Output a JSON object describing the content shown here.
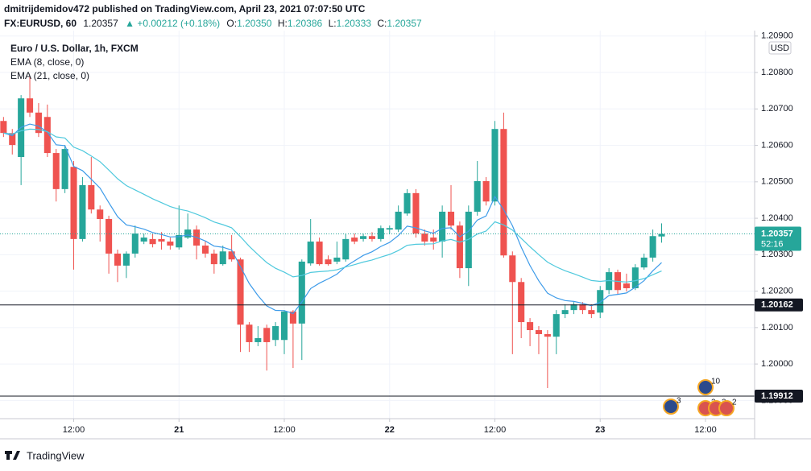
{
  "header": {
    "publisher": "dmitrijdemidov472 published on TradingView.com, April 23, 2021 07:07:50 UTC",
    "symbol": "FX:EURUSD, 60",
    "last": "1.20357",
    "change": "▲ +0.00212 (+0.18%)",
    "o_label": "O:",
    "o": "1.20350",
    "h_label": "H:",
    "h": "1.20386",
    "l_label": "L:",
    "l": "1.20333",
    "c_label": "C:",
    "c": "1.20357"
  },
  "footer": {
    "brand": "TradingView"
  },
  "chart_data": {
    "type": "candlestick",
    "title": "Euro / U.S. Dollar, 1h, FXCM",
    "currency": "USD",
    "up_color": "#26a69a",
    "down_color": "#ef5350",
    "grid": true,
    "open": [
      1.20667,
      1.20634,
      1.20568,
      1.20729,
      1.2069,
      1.20678,
      1.20579,
      1.2048,
      1.20541,
      1.20343,
      1.20491,
      1.20424,
      1.20398,
      1.20303,
      1.2027,
      1.20303,
      1.20336,
      1.20343,
      1.20343,
      1.20336,
      1.2032,
      1.20347,
      1.20369,
      1.20325,
      1.20303,
      1.20274,
      1.20309,
      1.20287,
      1.20108,
      1.2006,
      1.20099,
      1.20066,
      1.20066,
      1.20144,
      1.20111,
      1.20276,
      1.20336,
      1.20287,
      1.20281,
      1.20287,
      1.20347,
      1.20343,
      1.20351,
      1.20343,
      1.20369,
      1.20369,
      1.20413,
      1.20469,
      1.20358,
      1.20347,
      1.20336,
      1.20418,
      1.2038,
      1.20263,
      1.20418,
      1.20502,
      1.20446,
      1.20645,
      1.20298,
      1.20225,
      1.20115,
      1.20093,
      1.20082,
      1.20075,
      1.20137,
      1.20148,
      1.20164,
      1.20148,
      1.20141,
      1.20203,
      1.20252,
      1.20221,
      1.20208,
      1.20265,
      1.20292,
      1.2035
    ],
    "high": [
      1.20678,
      1.20645,
      1.20738,
      1.20789,
      1.20716,
      1.20712,
      1.2059,
      1.20601,
      1.20557,
      1.20513,
      1.20568,
      1.20435,
      1.20407,
      1.20314,
      1.20309,
      1.2038,
      1.20358,
      1.20358,
      1.20362,
      1.20347,
      1.20435,
      1.20413,
      1.2038,
      1.20336,
      1.20314,
      1.20325,
      1.20354,
      1.20292,
      1.20115,
      1.20104,
      1.20108,
      1.20115,
      1.20148,
      1.20148,
      1.20287,
      1.20398,
      1.20347,
      1.20298,
      1.20336,
      1.20358,
      1.20358,
      1.20358,
      1.20362,
      1.2038,
      1.2038,
      1.20435,
      1.2048,
      1.2048,
      1.20369,
      1.20369,
      1.20435,
      1.20491,
      1.20391,
      1.20435,
      1.20557,
      1.20513,
      1.20667,
      1.2069,
      1.20309,
      1.20236,
      1.20126,
      1.20104,
      1.20093,
      1.20148,
      1.20164,
      1.2017,
      1.2017,
      1.20164,
      1.20214,
      1.20263,
      1.20259,
      1.20248,
      1.20274,
      1.20303,
      1.20369,
      1.20386
    ],
    "low": [
      1.20623,
      1.20575,
      1.20491,
      1.20678,
      1.20623,
      1.20568,
      1.20446,
      1.20469,
      1.20259,
      1.20336,
      1.20413,
      1.20336,
      1.20248,
      1.20225,
      1.20236,
      1.20292,
      1.20329,
      1.2032,
      1.20314,
      1.20314,
      1.20314,
      1.20343,
      1.20287,
      1.20292,
      1.20248,
      1.2027,
      1.20281,
      1.20033,
      1.20033,
      1.20049,
      1.19982,
      1.20049,
      1.20027,
      1.19989,
      1.20011,
      1.2027,
      1.2027,
      1.2027,
      1.20274,
      1.20281,
      1.20329,
      1.20336,
      1.20336,
      1.20336,
      1.20358,
      1.20362,
      1.20407,
      1.20347,
      1.20325,
      1.20314,
      1.20292,
      1.20369,
      1.20236,
      1.20214,
      1.20407,
      1.20435,
      1.20435,
      1.20292,
      1.20027,
      1.20071,
      1.20049,
      1.20027,
      1.19934,
      1.20027,
      1.20126,
      1.20137,
      1.20137,
      1.20126,
      1.20126,
      1.20192,
      1.20192,
      1.20199,
      1.20203,
      1.20259,
      1.20281,
      1.20333
    ],
    "close": [
      1.20634,
      1.20601,
      1.20729,
      1.2069,
      1.20634,
      1.20579,
      1.2048,
      1.2059,
      1.20343,
      1.20491,
      1.20424,
      1.20398,
      1.20303,
      1.2027,
      1.20303,
      1.20358,
      1.20347,
      1.20329,
      1.20336,
      1.20325,
      1.20354,
      1.20369,
      1.20325,
      1.20303,
      1.20274,
      1.20309,
      1.20287,
      1.20108,
      1.2006,
      1.20071,
      1.2006,
      1.20104,
      1.20144,
      1.20111,
      1.20281,
      1.20336,
      1.20274,
      1.20274,
      1.20292,
      1.20343,
      1.20336,
      1.20351,
      1.20343,
      1.20373,
      1.20373,
      1.20418,
      1.20469,
      1.20358,
      1.20336,
      1.20336,
      1.20418,
      1.2038,
      1.20263,
      1.20418,
      1.20502,
      1.20446,
      1.20645,
      1.20298,
      1.20225,
      1.20115,
      1.20093,
      1.20082,
      1.20075,
      1.20137,
      1.20148,
      1.20164,
      1.20148,
      1.20137,
      1.20203,
      1.20252,
      1.20203,
      1.20208,
      1.20265,
      1.20292,
      1.20351,
      1.20357
    ],
    "indicators": [
      {
        "label": "EMA (8, close, 0)",
        "period": 8,
        "color": "#3d9be9"
      },
      {
        "label": "EMA (21, close, 0)",
        "period": 21,
        "color": "#4fc9dd"
      }
    ],
    "xlim": [
      -0.4,
      85.6
    ],
    "xticks": [
      {
        "value": 8,
        "label": "12:00"
      },
      {
        "value": 20,
        "label": "21"
      },
      {
        "value": 32,
        "label": "12:00"
      },
      {
        "value": 44,
        "label": "22"
      },
      {
        "value": 56,
        "label": "12:00"
      },
      {
        "value": 68,
        "label": "23"
      },
      {
        "value": 80,
        "label": "12:00"
      }
    ],
    "ylim": [
      1.1985,
      1.20915
    ],
    "yticks": [
      {
        "value": 1.199,
        "label": "1.19900"
      },
      {
        "value": 1.2,
        "label": "1.20000"
      },
      {
        "value": 1.201,
        "label": "1.20100"
      },
      {
        "value": 1.202,
        "label": "1.20200"
      },
      {
        "value": 1.203,
        "label": "1.20300"
      },
      {
        "value": 1.204,
        "label": "1.20400"
      },
      {
        "value": 1.205,
        "label": "1.20500"
      },
      {
        "value": 1.206,
        "label": "1.20600"
      },
      {
        "value": 1.207,
        "label": "1.20700"
      },
      {
        "value": 1.208,
        "label": "1.20800"
      },
      {
        "value": 1.209,
        "label": "1.20900"
      }
    ],
    "hlines": [
      {
        "value": 1.20162,
        "label": "1.20162"
      },
      {
        "value": 1.19912,
        "label": "1.19912"
      }
    ],
    "last_label": "1.20357",
    "countdown": "52:16",
    "events": [
      "3",
      "10",
      "2",
      "3",
      "2"
    ]
  }
}
